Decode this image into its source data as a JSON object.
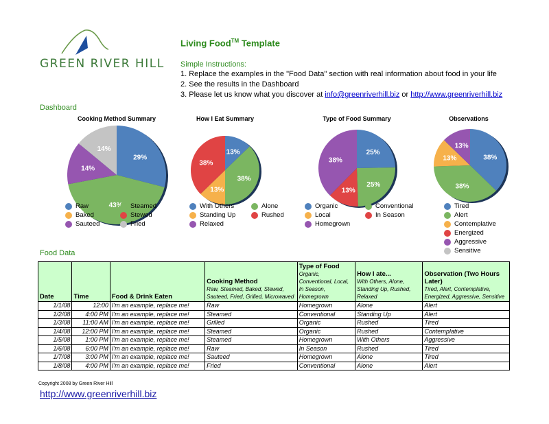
{
  "logo": {
    "text": "GREEN RIVER HILL"
  },
  "header": {
    "title": "Living Food",
    "title_tm": "TM",
    "title_suffix": " Template"
  },
  "instructions": {
    "heading": "Simple Instructions:",
    "items": [
      "1. Replace the examples in the \"Food Data\" section with real information about food in your life",
      "2. See the results in the Dashboard"
    ],
    "item3_prefix": "3. Please let us know what you discover at ",
    "email": "info@greenriverhill.biz",
    "item3_mid": " or ",
    "url": "http://www.greenriverhill.biz"
  },
  "dashboard_label": "Dashboard",
  "colors": {
    "blue": "#4f81bd",
    "green": "#7bb661",
    "orange": "#f6b14b",
    "red": "#e04444",
    "purple": "#9656b0",
    "gray": "#c4c4c4",
    "accent": "#2e8b1e",
    "header_bg": "#ccffcc"
  },
  "chart_data": [
    {
      "type": "pie",
      "title": "Cooking Method Summary",
      "legend_columns": 2,
      "slices": [
        {
          "name": "Raw",
          "value": 29,
          "label": "29%",
          "color": "#4f81bd"
        },
        {
          "name": "Steamed",
          "value": 43,
          "label": "43%",
          "color": "#7bb661"
        },
        {
          "name": "Baked",
          "value": 0,
          "color": "#f6b14b"
        },
        {
          "name": "Stewed",
          "value": 0,
          "color": "#e04444"
        },
        {
          "name": "Sauteed",
          "value": 14,
          "label": "14%",
          "color": "#9656b0"
        },
        {
          "name": "Fried",
          "value": 14,
          "label": "14%",
          "color": "#c4c4c4"
        }
      ]
    },
    {
      "type": "pie",
      "title": "How I Eat Summary",
      "legend_columns": 2,
      "slices": [
        {
          "name": "With Others",
          "value": 13,
          "label": "13%",
          "color": "#4f81bd"
        },
        {
          "name": "Alone",
          "value": 38,
          "label": "38%",
          "color": "#7bb661"
        },
        {
          "name": "Standing Up",
          "value": 13,
          "label": "13%",
          "color": "#f6b14b"
        },
        {
          "name": "Rushed",
          "value": 38,
          "label": "38%",
          "color": "#e04444"
        },
        {
          "name": "Relaxed",
          "value": 0,
          "color": "#9656b0"
        }
      ]
    },
    {
      "type": "pie",
      "title": "Type of Food Summary",
      "legend_columns": 2,
      "slices": [
        {
          "name": "Organic",
          "value": 25,
          "label": "25%",
          "color": "#4f81bd"
        },
        {
          "name": "Conventional",
          "value": 25,
          "label": "25%",
          "color": "#7bb661"
        },
        {
          "name": "Local",
          "value": 0,
          "color": "#f6b14b"
        },
        {
          "name": "In Season",
          "value": 13,
          "label": "13%",
          "color": "#e04444"
        },
        {
          "name": "Homegrown",
          "value": 38,
          "label": "38%",
          "color": "#9656b0"
        }
      ]
    },
    {
      "type": "pie",
      "title": "Observations",
      "legend_columns": 1,
      "slices": [
        {
          "name": "Tired",
          "value": 38,
          "label": "38%",
          "color": "#4f81bd"
        },
        {
          "name": "Alert",
          "value": 38,
          "label": "38%",
          "color": "#7bb661"
        },
        {
          "name": "Contemplative",
          "value": 13,
          "label": "13%",
          "color": "#f6b14b"
        },
        {
          "name": "Energized",
          "value": 0,
          "color": "#e04444"
        },
        {
          "name": "Aggressive",
          "value": 13,
          "label": "13%",
          "color": "#9656b0"
        },
        {
          "name": "Sensitive",
          "value": 0,
          "color": "#c4c4c4"
        }
      ]
    }
  ],
  "food_data": {
    "label": "Food Data",
    "headers": [
      {
        "title": "Date",
        "sub": ""
      },
      {
        "title": "Time",
        "sub": ""
      },
      {
        "title": "Food & Drink Eaten",
        "sub": ""
      },
      {
        "title": "Cooking Method",
        "sub": "Raw, Steamed, Baked, Stewed, Sauteed, Fried, Grilled, Microwaved"
      },
      {
        "title": "Type of Food",
        "sub": "Organic, Conventional, Local, In Season, Homegrown"
      },
      {
        "title": "How I ate...",
        "sub": "With Others, Alone, Standing Up, Rushed, Relaxed"
      },
      {
        "title": "Observation (Two Hours Later)",
        "sub": "Tired, Alert, Contemplative, Energized, Aggressive, Sensitive"
      }
    ],
    "rows": [
      [
        "1/1/08",
        "12:00",
        "I'm an example, replace me!",
        "Raw",
        "Homegrown",
        "Alone",
        "Alert"
      ],
      [
        "1/2/08",
        "4:00 PM",
        "I'm an example, replace me!",
        "Steamed",
        "Conventional",
        "Standing Up",
        "Alert"
      ],
      [
        "1/3/08",
        "11:00 AM",
        "I'm an example, replace me!",
        "Grilled",
        "Organic",
        "Rushed",
        "Tired"
      ],
      [
        "1/4/08",
        "12:00 PM",
        "I'm an example, replace me!",
        "Steamed",
        "Organic",
        "Rushed",
        "Contemplative"
      ],
      [
        "1/5/08",
        "1:00 PM",
        "I'm an example, replace me!",
        "Steamed",
        "Homegrown",
        "With Others",
        "Aggressive"
      ],
      [
        "1/6/08",
        "6:00 PM",
        "I'm an example, replace me!",
        "Raw",
        "In Season",
        "Rushed",
        "Tired"
      ],
      [
        "1/7/08",
        "3:00 PM",
        "I'm an example, replace me!",
        "Sauteed",
        "Homegrown",
        "Alone",
        "Tired"
      ],
      [
        "1/8/08",
        "4:00 PM",
        "I'm an example, replace me!",
        "Fried",
        "Conventional",
        "Alone",
        "Alert"
      ]
    ]
  },
  "footer": {
    "copyright": "Copyright 2008 by Green River Hill",
    "url": "http://www.greenriverhill.biz"
  }
}
